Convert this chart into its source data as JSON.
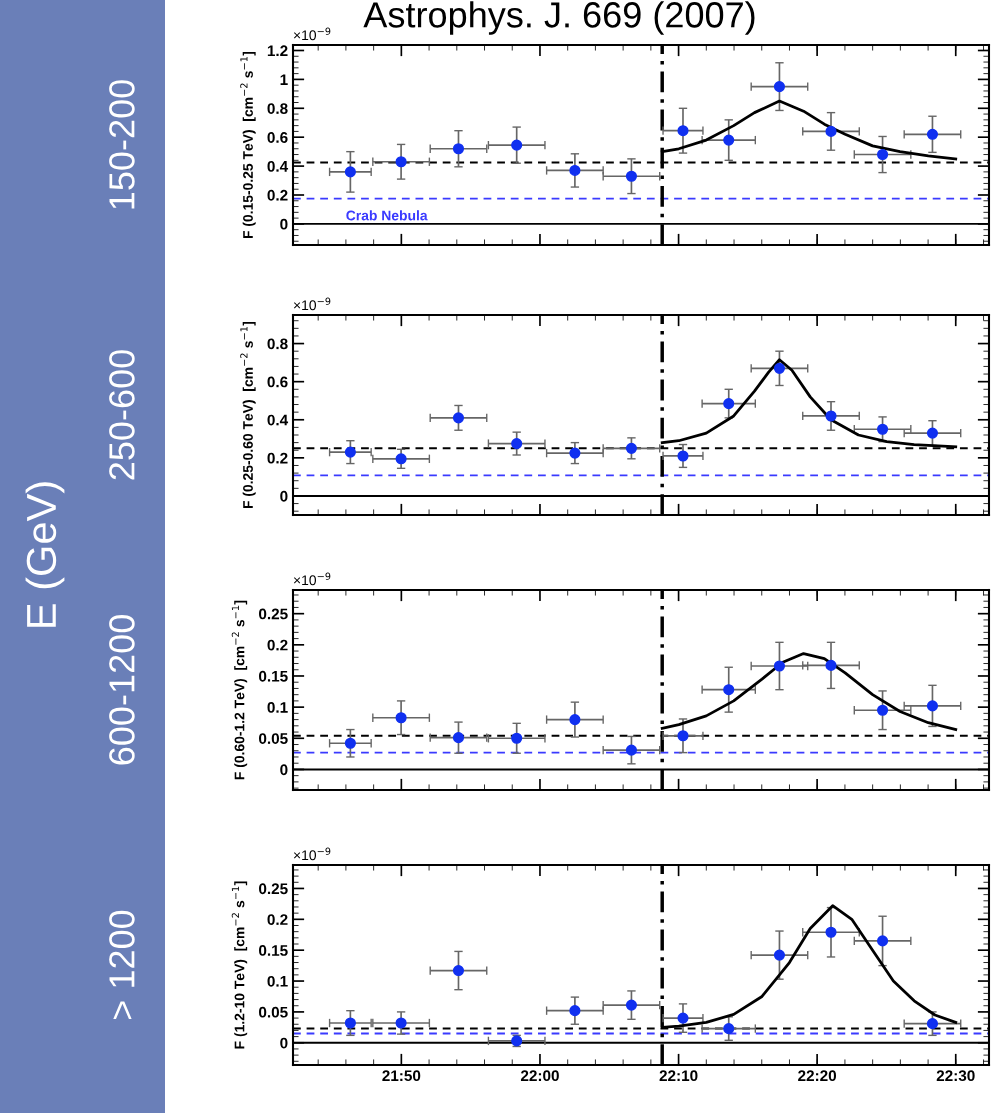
{
  "chart_data": [
    {
      "type": "scatter",
      "title": "Astrophys. J. 669 (2007)",
      "ylabel": "F (0.15-0.25 TeV)  [cm$^{−2}$ s$^{−1}$]",
      "annotations": [
        "×10$^{−9}$",
        "150-200"
      ],
      "xlim": [
        21.703,
        22.54
      ],
      "xticks": [
        {
          "value": 21.8333,
          "label": null
        },
        {
          "value": 22.0,
          "label": null
        },
        {
          "value": 22.1667,
          "label": null
        },
        {
          "value": 22.3333,
          "label": null
        },
        {
          "value": 22.5,
          "label": null
        }
      ],
      "ylim": [
        -0.146,
        1.238
      ],
      "yticks": [
        0,
        0.2,
        0.4,
        0.6,
        0.8,
        {
          "value": 1,
          "label": "1"
        },
        1.2
      ],
      "tick_labels": "y",
      "grid": false,
      "legend": false,
      "series": [
        {
          "type": "scatter",
          "color": "#1030f0",
          "x": [
            21.772,
            21.833,
            21.902,
            21.972,
            22.042,
            22.11,
            22.172,
            22.227,
            22.288,
            22.35,
            22.412,
            22.472
          ],
          "marker": "circle",
          "values": [
            0.36,
            0.43,
            0.52,
            0.545,
            0.37,
            0.33,
            0.645,
            0.58,
            0.95,
            0.64,
            0.48,
            0.62
          ],
          "errors": [
            0.14,
            0.12,
            0.125,
            0.125,
            0.115,
            0.12,
            0.155,
            0.14,
            0.165,
            0.13,
            0.125,
            0.125
          ],
          "xerrors": [
            0.025,
            0.034,
            0.034,
            0.034,
            0.034,
            0.034,
            0.024,
            0.032,
            0.034,
            0.034,
            0.034,
            0.034
          ]
        },
        {
          "type": "line",
          "color": "#000000",
          "line_style": "solid",
          "x": [
            22.147,
            22.167,
            22.2,
            22.233,
            22.258,
            22.288,
            22.317,
            22.342,
            22.367,
            22.4,
            22.433,
            22.467,
            22.5
          ],
          "values": [
            0.5,
            0.52,
            0.58,
            0.68,
            0.77,
            0.85,
            0.78,
            0.69,
            0.62,
            0.54,
            0.5,
            0.47,
            0.45
          ]
        }
      ],
      "ref_lines": [
        {
          "axis": "y",
          "value": 0,
          "color": "#000000",
          "line_style": "solid"
        },
        {
          "axis": "y",
          "value": 0.425,
          "color": "#000000",
          "line_style": "dashed"
        },
        {
          "axis": "y",
          "value": 0.175,
          "color": "#3a3aff",
          "line_style": "dashed",
          "label": "Crab Nebula"
        },
        {
          "axis": "x",
          "value": 22.147,
          "color": "#000000",
          "line_style": "dashdot"
        }
      ]
    },
    {
      "type": "scatter",
      "ylabel": "F (0.25-0.60 TeV)  [cm$^{−2}$ s$^{−1}$]",
      "annotations": [
        "×10$^{−9}$",
        "250-600",
        "E (GeV)"
      ],
      "xlim": [
        21.703,
        22.54
      ],
      "xticks": [
        {
          "value": 21.8333,
          "label": null
        },
        {
          "value": 22.0,
          "label": null
        },
        {
          "value": 22.1667,
          "label": null
        },
        {
          "value": 22.3333,
          "label": null
        },
        {
          "value": 22.5,
          "label": null
        }
      ],
      "ylim": [
        -0.1,
        0.95
      ],
      "yticks": [
        0,
        0.2,
        0.4,
        0.6,
        0.8
      ],
      "tick_labels": "y",
      "grid": false,
      "legend": false,
      "series": [
        {
          "type": "scatter",
          "color": "#1030f0",
          "x": [
            21.772,
            21.833,
            21.902,
            21.972,
            22.042,
            22.11,
            22.172,
            22.227,
            22.288,
            22.35,
            22.412,
            22.472
          ],
          "marker": "circle",
          "values": [
            0.23,
            0.195,
            0.41,
            0.275,
            0.225,
            0.25,
            0.21,
            0.485,
            0.67,
            0.42,
            0.35,
            0.33
          ],
          "errors": [
            0.06,
            0.05,
            0.065,
            0.06,
            0.055,
            0.055,
            0.06,
            0.075,
            0.09,
            0.075,
            0.065,
            0.065
          ],
          "xerrors": [
            0.025,
            0.034,
            0.034,
            0.034,
            0.034,
            0.034,
            0.024,
            0.032,
            0.034,
            0.034,
            0.034,
            0.034
          ]
        },
        {
          "type": "line",
          "color": "#000000",
          "line_style": "solid",
          "x": [
            22.147,
            22.167,
            22.2,
            22.233,
            22.258,
            22.275,
            22.288,
            22.303,
            22.325,
            22.35,
            22.383,
            22.417,
            22.45,
            22.5
          ],
          "values": [
            0.28,
            0.29,
            0.33,
            0.42,
            0.55,
            0.65,
            0.715,
            0.66,
            0.52,
            0.4,
            0.32,
            0.285,
            0.27,
            0.258
          ]
        }
      ],
      "ref_lines": [
        {
          "axis": "y",
          "value": 0,
          "color": "#000000",
          "line_style": "solid"
        },
        {
          "axis": "y",
          "value": 0.25,
          "color": "#000000",
          "line_style": "dashed"
        },
        {
          "axis": "y",
          "value": 0.108,
          "color": "#3a3aff",
          "line_style": "dashed"
        },
        {
          "axis": "x",
          "value": 22.147,
          "color": "#000000",
          "line_style": "dashdot"
        }
      ]
    },
    {
      "type": "scatter",
      "ylabel": "F (0.60-1.2 TeV)  [cm$^{−2}$ s$^{−1}$]",
      "annotations": [
        "×10$^{−9}$",
        "600-1200"
      ],
      "xlim": [
        21.703,
        22.54
      ],
      "xticks": [
        {
          "value": 21.8333,
          "label": null
        },
        {
          "value": 22.0,
          "label": null
        },
        {
          "value": 22.1667,
          "label": null
        },
        {
          "value": 22.3333,
          "label": null
        },
        {
          "value": 22.5,
          "label": null
        }
      ],
      "ylim": [
        -0.033,
        0.288
      ],
      "yticks": [
        0,
        0.05,
        0.1,
        0.15,
        0.2,
        0.25
      ],
      "tick_labels": "y",
      "grid": false,
      "legend": false,
      "series": [
        {
          "type": "scatter",
          "color": "#1030f0",
          "x": [
            21.772,
            21.833,
            21.902,
            21.972,
            22.042,
            22.11,
            22.172,
            22.227,
            22.288,
            22.35,
            22.412,
            22.472
          ],
          "marker": "circle",
          "values": [
            0.042,
            0.083,
            0.051,
            0.05,
            0.08,
            0.031,
            0.054,
            0.128,
            0.166,
            0.167,
            0.095,
            0.102
          ],
          "errors": [
            0.022,
            0.027,
            0.025,
            0.024,
            0.028,
            0.022,
            0.027,
            0.036,
            0.038,
            0.037,
            0.031,
            0.033
          ],
          "xerrors": [
            0.025,
            0.034,
            0.034,
            0.034,
            0.034,
            0.034,
            0.024,
            0.032,
            0.034,
            0.034,
            0.034,
            0.034
          ]
        },
        {
          "type": "line",
          "color": "#000000",
          "line_style": "solid",
          "x": [
            22.147,
            22.167,
            22.2,
            22.233,
            22.267,
            22.292,
            22.317,
            22.342,
            22.367,
            22.4,
            22.433,
            22.467,
            22.5
          ],
          "values": [
            0.066,
            0.072,
            0.086,
            0.11,
            0.145,
            0.172,
            0.186,
            0.178,
            0.155,
            0.12,
            0.093,
            0.075,
            0.064
          ]
        }
      ],
      "ref_lines": [
        {
          "axis": "y",
          "value": 0,
          "color": "#000000",
          "line_style": "solid"
        },
        {
          "axis": "y",
          "value": 0.054,
          "color": "#000000",
          "line_style": "dashed"
        },
        {
          "axis": "y",
          "value": 0.027,
          "color": "#3a3aff",
          "line_style": "dashed"
        },
        {
          "axis": "x",
          "value": 22.147,
          "color": "#000000",
          "line_style": "dashdot"
        }
      ]
    },
    {
      "type": "scatter",
      "ylabel": "F (1.2-10 TeV)  [cm$^{−2}$ s$^{−1}$]",
      "annotations": [
        "×10$^{−9}$",
        "> 1200"
      ],
      "xlim": [
        21.703,
        22.54
      ],
      "xticks": [
        {
          "value": 21.8333,
          "label": "21:50"
        },
        {
          "value": 22.0,
          "label": "22:00"
        },
        {
          "value": 22.1667,
          "label": "22:10"
        },
        {
          "value": 22.3333,
          "label": "22:20"
        },
        {
          "value": 22.5,
          "label": "22:30"
        }
      ],
      "ylim": [
        -0.036,
        0.288
      ],
      "yticks": [
        0,
        0.05,
        0.1,
        0.15,
        0.2,
        0.25
      ],
      "grid": false,
      "legend": false,
      "series": [
        {
          "type": "scatter",
          "marker": "circle",
          "color": "#1030f0",
          "x": [
            21.772,
            21.833,
            21.902,
            21.972,
            22.042,
            22.11,
            22.172,
            22.227,
            22.288,
            22.35,
            22.412,
            22.472
          ],
          "values": [
            0.032,
            0.032,
            0.117,
            0.003,
            0.052,
            0.061,
            0.04,
            0.023,
            0.142,
            0.179,
            0.165,
            0.031
          ],
          "errors": [
            0.02,
            0.018,
            0.031,
            0.009,
            0.022,
            0.023,
            0.023,
            0.019,
            0.039,
            0.04,
            0.04,
            0.019
          ],
          "xerrors": [
            0.025,
            0.034,
            0.034,
            0.034,
            0.034,
            0.034,
            0.024,
            0.032,
            0.034,
            0.034,
            0.034,
            0.034
          ]
        },
        {
          "type": "line",
          "color": "#000000",
          "line_style": "solid",
          "x": [
            22.147,
            22.167,
            22.2,
            22.233,
            22.267,
            22.3,
            22.325,
            22.352,
            22.375,
            22.4,
            22.425,
            22.45,
            22.475,
            22.5
          ],
          "values": [
            0.025,
            0.027,
            0.033,
            0.046,
            0.075,
            0.13,
            0.185,
            0.222,
            0.2,
            0.15,
            0.1,
            0.068,
            0.045,
            0.033
          ]
        }
      ],
      "ref_lines": [
        {
          "axis": "y",
          "value": 0,
          "color": "#000000",
          "line_style": "solid"
        },
        {
          "axis": "y",
          "value": 0.023,
          "color": "#000000",
          "line_style": "dashed"
        },
        {
          "axis": "y",
          "value": 0.015,
          "color": "#3a3aff",
          "line_style": "dashed"
        },
        {
          "axis": "x",
          "value": 22.147,
          "color": "#000000",
          "line_style": "dashdot"
        }
      ]
    }
  ]
}
